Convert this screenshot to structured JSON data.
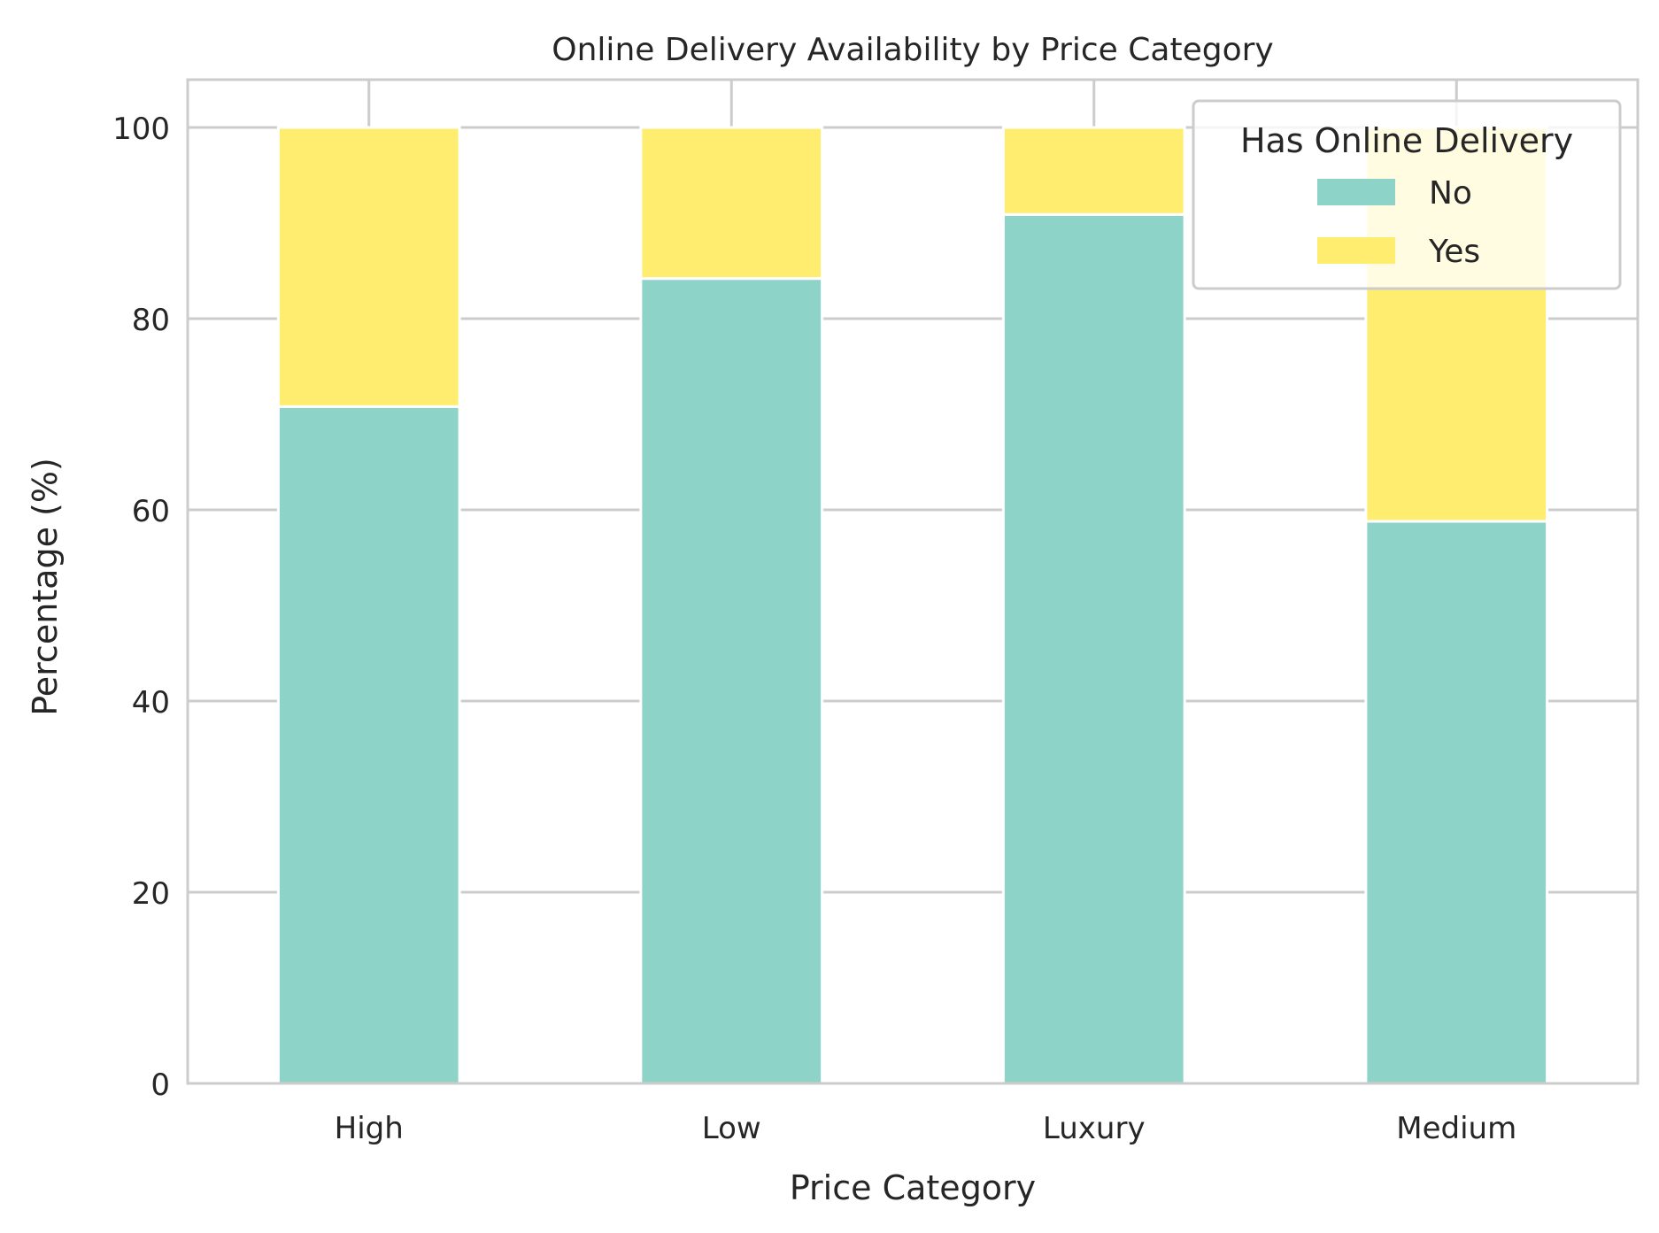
{
  "chart_data": {
    "type": "bar",
    "stacked": true,
    "title": "Online Delivery Availability by Price Category",
    "xlabel": "Price Category",
    "ylabel": "Percentage (%)",
    "categories": [
      "High",
      "Low",
      "Luxury",
      "Medium"
    ],
    "ylim": [
      0,
      105
    ],
    "yticks": [
      0,
      20,
      40,
      60,
      80,
      100
    ],
    "grid": true,
    "legend": {
      "title": "Has Online Delivery",
      "placement": "top-right"
    },
    "series": [
      {
        "name": "No",
        "color": "#8ed3c7",
        "values": [
          70.8,
          84.2,
          90.9,
          58.8
        ]
      },
      {
        "name": "Yes",
        "color": "#ffed6f",
        "values": [
          29.2,
          15.8,
          9.1,
          41.2
        ]
      }
    ]
  }
}
